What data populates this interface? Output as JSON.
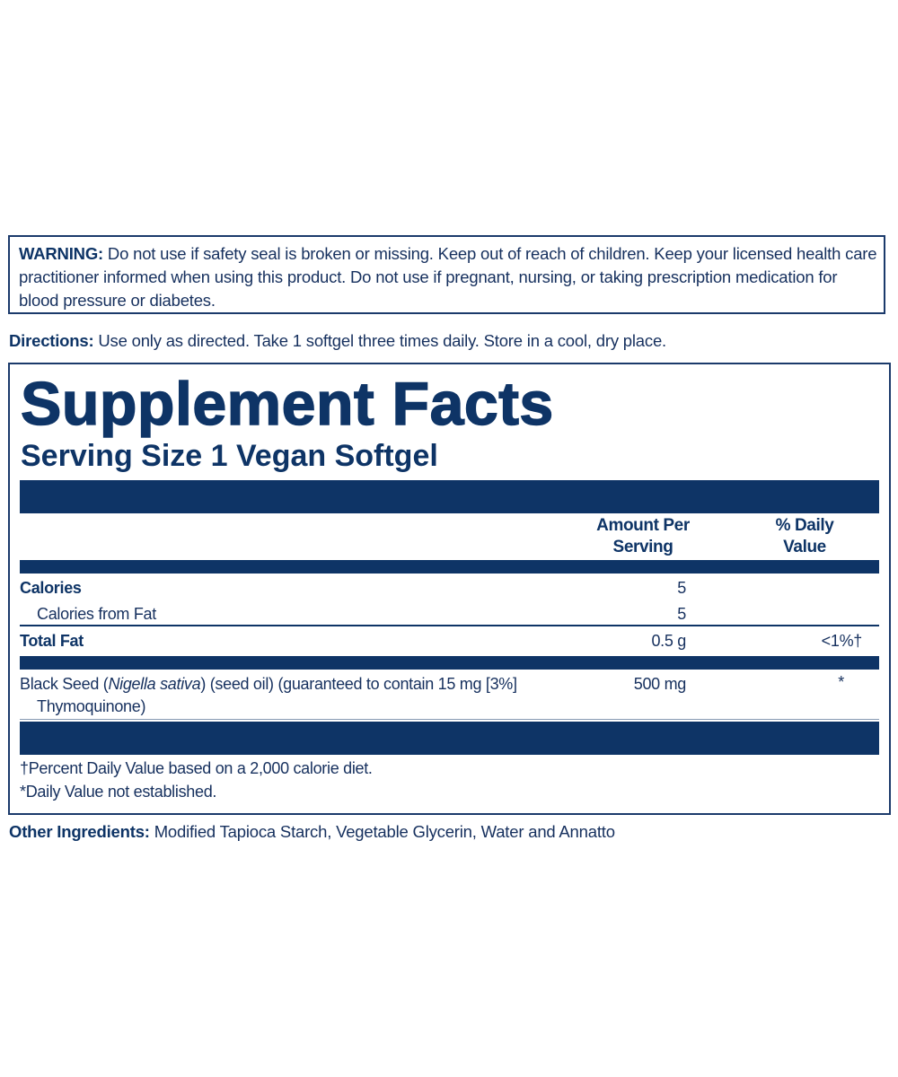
{
  "warning": {
    "label": "WARNING:",
    "text": " Do not use if safety seal is broken or missing. Keep out of reach of children. Keep your licensed health care practitioner informed when using this product. Do not use if pregnant, nursing, or taking prescription medication for blood pressure or diabetes."
  },
  "directions": {
    "label": "Directions:",
    "text": " Use only as directed. Take 1 softgel three times daily. Store in a cool, dry place."
  },
  "facts": {
    "title": "Supplement Facts",
    "serving_size": "Serving Size 1 Vegan Softgel",
    "header_amount_1": "Amount Per",
    "header_amount_2": "Serving",
    "header_dv_1": "% Daily",
    "header_dv_2": "Value",
    "rows": [
      {
        "name": "Calories",
        "amount": "5",
        "dv": ""
      },
      {
        "name": "Calories from Fat",
        "amount": "5",
        "dv": ""
      },
      {
        "name": "Total Fat",
        "amount": "0.5 g",
        "dv": "<1%†"
      }
    ],
    "black_seed": {
      "name_pre": "Black Seed (",
      "name_italic": "Nigella sativa",
      "name_post": ") (seed oil) (guaranteed to contain 15 mg [3%]",
      "name_line2": "Thymoquinone)",
      "amount": "500 mg",
      "dv": "*"
    },
    "footnote_1": "†Percent Daily Value based on a 2,000 calorie diet.",
    "footnote_2": "*Daily Value not established."
  },
  "other_ingredients": {
    "label": "Other Ingredients:",
    "text": " Modified Tapioca Starch, Vegetable Glycerin, Water and Annatto"
  },
  "colors": {
    "navy": "#0e3466"
  }
}
